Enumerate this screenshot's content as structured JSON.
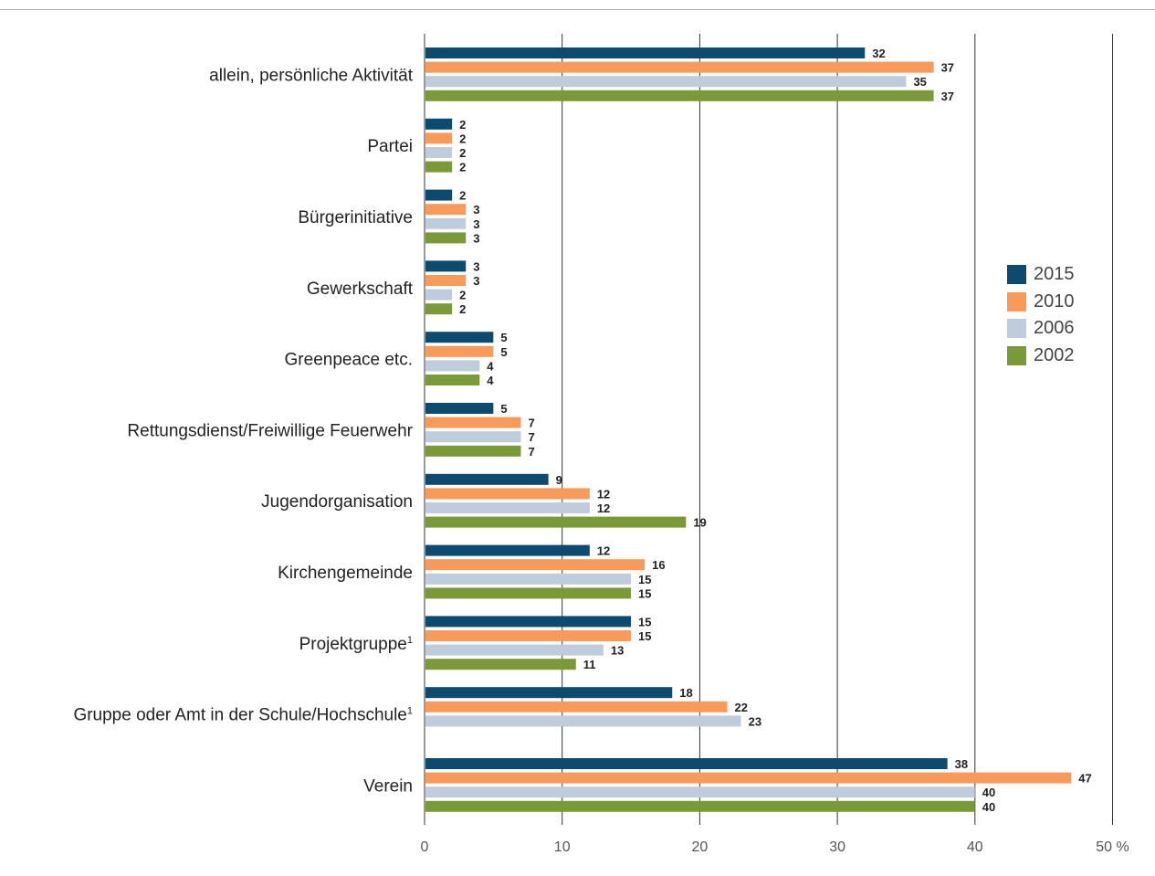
{
  "chart_data": {
    "type": "bar",
    "orientation": "horizontal",
    "categories": [
      {
        "label": "allein, persönliche Aktivität",
        "sup": ""
      },
      {
        "label": "Partei",
        "sup": ""
      },
      {
        "label": "Bürgerinitiative",
        "sup": ""
      },
      {
        "label": "Gewerkschaft",
        "sup": ""
      },
      {
        "label": "Greenpeace etc.",
        "sup": ""
      },
      {
        "label": "Rettungsdienst/Freiwillige Feuerwehr",
        "sup": ""
      },
      {
        "label": "Jugendorganisation",
        "sup": ""
      },
      {
        "label": "Kirchengemeinde",
        "sup": ""
      },
      {
        "label": "Projektgruppe",
        "sup": "1"
      },
      {
        "label": "Gruppe oder Amt in der Schule/Hochschule",
        "sup": "1"
      },
      {
        "label": "Verein",
        "sup": ""
      }
    ],
    "series": [
      {
        "name": "2015",
        "color": "#0d4a70",
        "values": [
          32,
          2,
          2,
          3,
          5,
          5,
          9,
          12,
          15,
          18,
          38
        ]
      },
      {
        "name": "2010",
        "color": "#f79a5a",
        "values": [
          37,
          2,
          3,
          3,
          5,
          7,
          12,
          16,
          15,
          22,
          47
        ]
      },
      {
        "name": "2006",
        "color": "#bfccdc",
        "values": [
          35,
          2,
          3,
          2,
          4,
          7,
          12,
          15,
          13,
          23,
          40
        ]
      },
      {
        "name": "2002",
        "color": "#7a9a3a",
        "values": [
          37,
          2,
          3,
          2,
          4,
          7,
          19,
          15,
          11,
          null,
          40
        ]
      }
    ],
    "xlim": [
      0,
      50
    ],
    "xticks": [
      "0",
      "10",
      "20",
      "30",
      "40",
      "50 %"
    ],
    "grid": true,
    "legend_position": "right"
  }
}
